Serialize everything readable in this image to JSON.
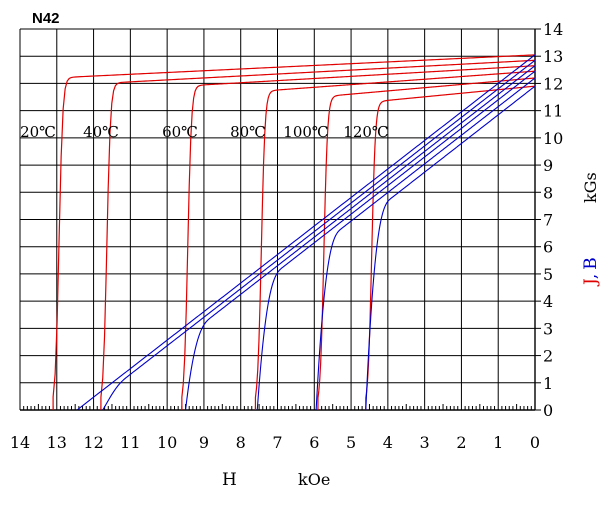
{
  "chart_data": {
    "type": "line",
    "title": "N42",
    "xlabel": "H",
    "xunit": "kOe",
    "ylabel_j": "J",
    "ylabel_sep": ",",
    "ylabel_b": "B",
    "yunit": "kGs",
    "x_reversed": true,
    "xlim": [
      0,
      14
    ],
    "ylim": [
      0,
      14
    ],
    "grid": true,
    "x_ticks": [
      "14",
      "13",
      "12",
      "11",
      "10",
      "9",
      "8",
      "7",
      "6",
      "5",
      "4",
      "3",
      "2",
      "1",
      "0"
    ],
    "y_ticks": [
      "0",
      "1",
      "2",
      "3",
      "4",
      "5",
      "6",
      "7",
      "8",
      "9",
      "10",
      "11",
      "12",
      "13",
      "14"
    ],
    "temperature_labels": [
      "20℃",
      "40℃",
      "60℃",
      "80℃",
      "100℃",
      "120℃"
    ],
    "colors": {
      "J": "#e00000",
      "B": "#0000cc",
      "grid": "#000000"
    },
    "J_series": [
      {
        "name": "20℃",
        "hcj": 13.1,
        "knee": 12.2,
        "jr": 13.05
      },
      {
        "name": "40℃",
        "hcj": 11.8,
        "knee": 12.0,
        "jr": 12.85
      },
      {
        "name": "60℃",
        "hcj": 9.6,
        "knee": 11.9,
        "jr": 12.65
      },
      {
        "name": "80℃",
        "hcj": 7.6,
        "knee": 11.7,
        "jr": 12.45
      },
      {
        "name": "100℃",
        "hcj": 5.9,
        "knee": 11.5,
        "jr": 12.2
      },
      {
        "name": "120℃",
        "hcj": 4.6,
        "knee": 11.3,
        "jr": 11.9
      }
    ],
    "B_series": [
      {
        "name": "20℃",
        "br": 13.05,
        "hcb": 12.45,
        "knee_h": 12.45,
        "knee_b": 0.0
      },
      {
        "name": "40℃",
        "br": 12.85,
        "hcb": 12.25,
        "knee_h": 11.75,
        "knee_b": 0.5
      },
      {
        "name": "60℃",
        "br": 12.65,
        "hcb": 12.05,
        "knee_h": 9.5,
        "knee_b": 2.6
      },
      {
        "name": "80℃",
        "br": 12.45,
        "hcb": 11.85,
        "knee_h": 7.55,
        "knee_b": 4.5
      },
      {
        "name": "100℃",
        "br": 12.2,
        "hcb": 11.6,
        "knee_h": 5.95,
        "knee_b": 5.9
      },
      {
        "name": "120℃",
        "br": 11.9,
        "hcb": 11.3,
        "knee_h": 4.6,
        "knee_b": 7.1
      }
    ]
  }
}
